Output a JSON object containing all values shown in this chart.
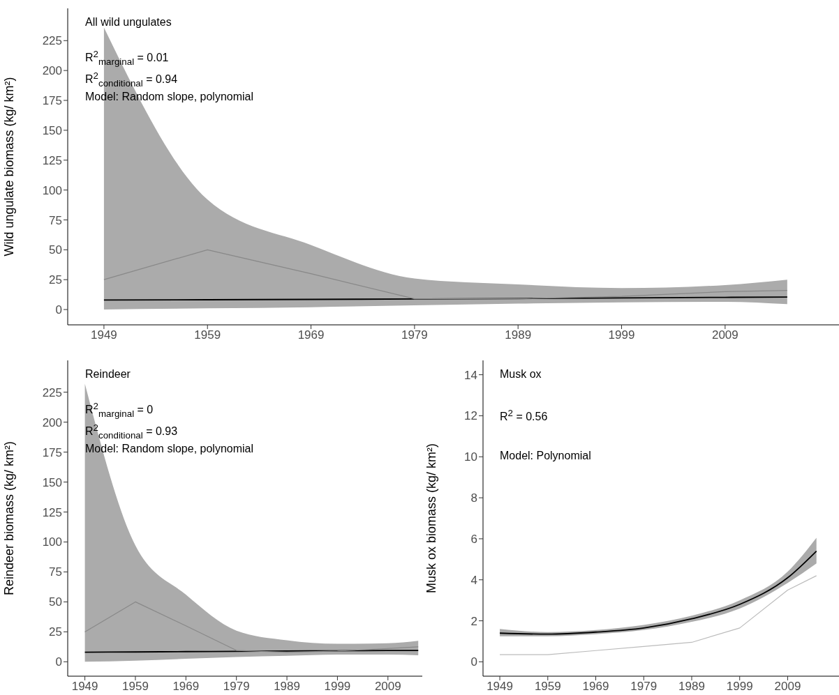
{
  "chart_data": [
    {
      "type": "line",
      "title": "All wild ungulates",
      "ylabel": "Wild ungulate biomass (kg/ km²)",
      "annotations": [
        "R$^{2}$$_{marginal}$ = 0.01",
        "R$^{2}$$_{conditional}$ = 0.94",
        "Model: Random slope, polynomial"
      ],
      "x": [
        1949,
        1959,
        1969,
        1979,
        1989,
        1999,
        2009,
        2015
      ],
      "series": [
        {
          "color": "#000000",
          "values": [
            8,
            8.2,
            8.5,
            8.8,
            9.2,
            9.7,
            10.2,
            10.5
          ],
          "lower": [
            0,
            1,
            2,
            3.5,
            5,
            6,
            6.5,
            4.5
          ],
          "upper": [
            236,
            92,
            54,
            26,
            21,
            18,
            20.5,
            25
          ]
        },
        {
          "color": "#888888",
          "values": [
            25,
            50,
            30,
            9,
            9,
            11,
            15,
            16
          ]
        }
      ],
      "xlim": [
        1945.5,
        2020
      ],
      "xticks": [
        1949,
        1959,
        1969,
        1979,
        1989,
        1999,
        2009
      ],
      "ylim": [
        -12.8,
        252
      ],
      "yticks": [
        0,
        25,
        50,
        75,
        100,
        125,
        150,
        175,
        200,
        225
      ],
      "grid": false,
      "legend": false,
      "marker": "none",
      "line_style": "solid"
    },
    {
      "type": "line",
      "title": "Reindeer",
      "ylabel": "Reindeer biomass (kg/ km²)",
      "annotations": [
        "R$^{2}$$_{marginal}$ = 0",
        "R$^{2}$$_{conditional}$ = 0.93",
        "Model: Random slope, polynomial"
      ],
      "x": [
        1949,
        1959,
        1969,
        1979,
        1989,
        1999,
        2009,
        2015
      ],
      "series": [
        {
          "color": "#000000",
          "values": [
            8,
            8.2,
            8.5,
            8.7,
            9,
            9.2,
            9.4,
            9.5
          ],
          "lower": [
            0,
            1,
            2.5,
            4,
            5,
            6,
            6,
            5.4
          ],
          "upper": [
            232,
            97,
            56,
            26,
            18,
            15,
            15.5,
            17.5
          ]
        },
        {
          "color": "#888888",
          "values": [
            25,
            50,
            30,
            9.5,
            8,
            9,
            11,
            12.5
          ]
        }
      ],
      "xlim": [
        1945.6,
        2015.8
      ],
      "xticks": [
        1949,
        1959,
        1969,
        1979,
        1989,
        1999,
        2009
      ],
      "ylim": [
        -12,
        251.5
      ],
      "yticks": [
        0,
        25,
        50,
        75,
        100,
        125,
        150,
        175,
        200,
        225
      ],
      "grid": false,
      "legend": false,
      "marker": "none",
      "line_style": "solid"
    },
    {
      "type": "line",
      "title": "Musk ox",
      "ylabel": "Musk ox biomass (kg/ km²)",
      "annotations": [
        "R$^{2}$ = 0.56",
        "Model: Polynomial"
      ],
      "x": [
        1949,
        1959,
        1969,
        1979,
        1989,
        1999,
        2009,
        2015
      ],
      "series": [
        {
          "color": "#000000",
          "values": [
            1.4,
            1.35,
            1.45,
            1.65,
            2.1,
            2.8,
            4.1,
            5.4
          ],
          "lower": [
            1.25,
            1.25,
            1.35,
            1.55,
            1.95,
            2.6,
            3.85,
            4.8
          ],
          "upper": [
            1.6,
            1.45,
            1.55,
            1.8,
            2.25,
            3.0,
            4.4,
            6.05
          ]
        },
        {
          "color": "#bbbbbb",
          "values": [
            0.35,
            0.35,
            0.55,
            0.75,
            0.95,
            1.65,
            3.5,
            4.2
          ]
        }
      ],
      "xlim": [
        1945.5,
        2019.7
      ],
      "xticks": [
        1949,
        1959,
        1969,
        1979,
        1989,
        1999,
        2009
      ],
      "ylim": [
        -0.7,
        14.7
      ],
      "yticks": [
        0,
        2,
        4,
        6,
        8,
        10,
        12,
        14
      ],
      "grid": false,
      "legend": false,
      "marker": "none",
      "line_style": "solid"
    }
  ]
}
